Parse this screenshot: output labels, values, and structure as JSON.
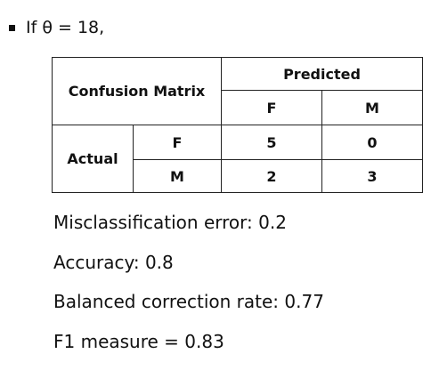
{
  "heading": "If θ = 18,",
  "table": {
    "corner": "Confusion Matrix",
    "predicted": "Predicted",
    "actual": "Actual",
    "columns": [
      "F",
      "M"
    ],
    "rows": [
      {
        "label": "F",
        "cells": [
          "5",
          "0"
        ]
      },
      {
        "label": "M",
        "cells": [
          "2",
          "3"
        ]
      }
    ]
  },
  "bullets": [
    "Misclassification error: 0.2",
    "Accuracy: 0.8",
    "Balanced correction rate: 0.77",
    "F1 measure = 0.83"
  ]
}
